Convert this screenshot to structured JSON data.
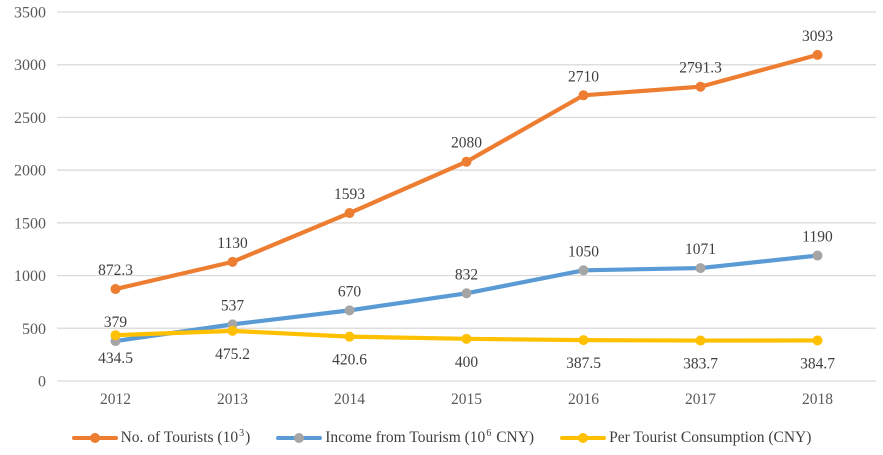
{
  "chart_data": {
    "type": "line",
    "title": "",
    "xlabel": "",
    "ylabel": "",
    "categories": [
      "2012",
      "2013",
      "2014",
      "2015",
      "2016",
      "2017",
      "2018"
    ],
    "series": [
      {
        "name": "No. of Tourists (10³)",
        "values": [
          872.3,
          1130,
          1593,
          2080,
          2710,
          2791.3,
          3093
        ],
        "color": "#ED7D31",
        "marker_color": "#ED7D31",
        "label_position": "above"
      },
      {
        "name": "Income from Tourism (10⁶ CNY)",
        "values": [
          379,
          537,
          670,
          832,
          1050,
          1071,
          1190
        ],
        "color": "#5B9BD5",
        "marker_color": "#A5A5A5",
        "label_position": "above"
      },
      {
        "name": "Per Tourist Consumption (CNY)",
        "values": [
          434.5,
          475.2,
          420.6,
          400,
          387.5,
          383.7,
          384.7
        ],
        "color": "#FFC000",
        "marker_color": "#FFC000",
        "label_position": "below"
      }
    ],
    "ylim": [
      0,
      3500
    ],
    "ytick_step": 500,
    "grid": "on",
    "legend_position": "bottom"
  },
  "legend": {
    "items": [
      {
        "pre": "No. of Tourists (10",
        "sup": "3",
        "post": ")",
        "line_color": "#ED7D31",
        "dot_color": "#ED7D31"
      },
      {
        "pre": "Income from Tourism (10",
        "sup": "6",
        "post": " CNY)",
        "line_color": "#5B9BD5",
        "dot_color": "#A5A5A5"
      },
      {
        "pre": "Per Tourist Consumption (CNY)",
        "sup": "",
        "post": "",
        "line_color": "#FFC000",
        "dot_color": "#FFC000"
      }
    ]
  },
  "colors": {
    "gridline": "#D9D9D9",
    "axis_text": "#595959",
    "data_label_text": "#3F3F3F",
    "background": "#FFFFFF"
  }
}
